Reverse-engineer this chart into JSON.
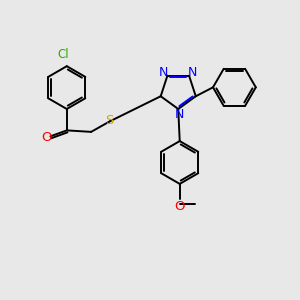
{
  "bg_color": "#e8e8e8",
  "bond_color": "#000000",
  "n_color": "#0000ff",
  "o_color": "#ff0000",
  "s_color": "#ccaa00",
  "cl_color": "#33aa00",
  "line_width": 1.4,
  "figsize": [
    3.0,
    3.0
  ],
  "dpi": 100,
  "xlim": [
    0,
    10
  ],
  "ylim": [
    0,
    10
  ],
  "hex_r": 0.72,
  "tri_r": 0.62
}
